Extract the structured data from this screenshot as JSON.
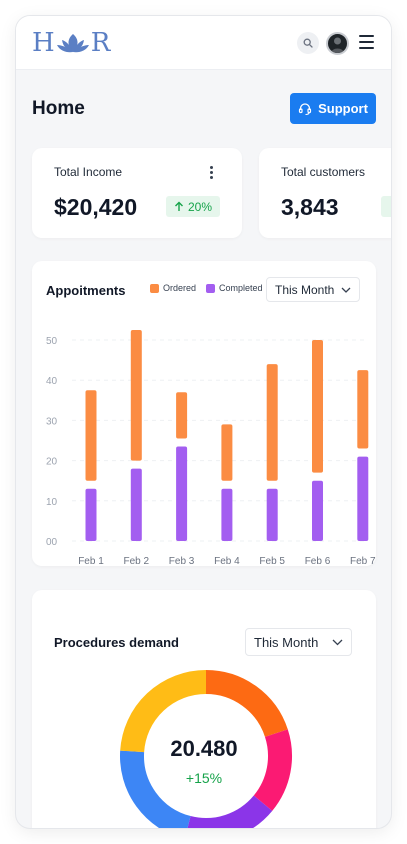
{
  "header": {
    "logo": {
      "letter_left": "H",
      "letter_right": "R"
    },
    "search_icon": "search-icon",
    "menu_icon": "hamburger-icon"
  },
  "page": {
    "title": "Home",
    "support_label": "Support",
    "support_icon": "headset-icon"
  },
  "stats": [
    {
      "label": "Total Income",
      "value": "$20,420",
      "badge": "20%",
      "trend": "up",
      "badge_color": "#16a34a"
    },
    {
      "label": "Total customers",
      "value": "3,843"
    }
  ],
  "appointments": {
    "title": "Appoitments",
    "legend": [
      {
        "label": "Ordered",
        "color": "#fb8c43"
      },
      {
        "label": "Completed",
        "color": "#a35ef0"
      }
    ],
    "period": "This Month",
    "chart_data": {
      "type": "bar",
      "categories": [
        "Feb 1",
        "Feb 2",
        "Feb 3",
        "Feb 4",
        "Feb 5",
        "Feb 6",
        "Feb 7"
      ],
      "y_ticks": [
        "50",
        "40",
        "30",
        "20",
        "10",
        "00"
      ],
      "ylim": [
        0,
        50
      ],
      "series": [
        {
          "name": "Completed",
          "color": "#a35ef0",
          "ranges": [
            [
              0,
              13
            ],
            [
              0,
              18
            ],
            [
              0,
              23.5
            ],
            [
              0,
              13
            ],
            [
              0,
              13
            ],
            [
              0,
              15
            ],
            [
              0,
              21
            ]
          ]
        },
        {
          "name": "Ordered",
          "color": "#fb8c43",
          "ranges": [
            [
              15,
              37.5
            ],
            [
              20,
              52.5
            ],
            [
              25.5,
              37
            ],
            [
              15,
              29
            ],
            [
              15,
              44
            ],
            [
              17,
              50
            ],
            [
              23,
              42.5
            ]
          ]
        }
      ]
    }
  },
  "procedures": {
    "title": "Procedures demand",
    "period": "This Month",
    "total": "20.480",
    "change": "+15%",
    "segments": [
      {
        "value": 20,
        "color": "#fd6a13"
      },
      {
        "value": 16,
        "color": "#fb1a73"
      },
      {
        "value": 18,
        "color": "#8b35e8"
      },
      {
        "value": 22,
        "color": "#3d86f5"
      },
      {
        "value": 24,
        "color": "#ffbc16"
      }
    ]
  }
}
